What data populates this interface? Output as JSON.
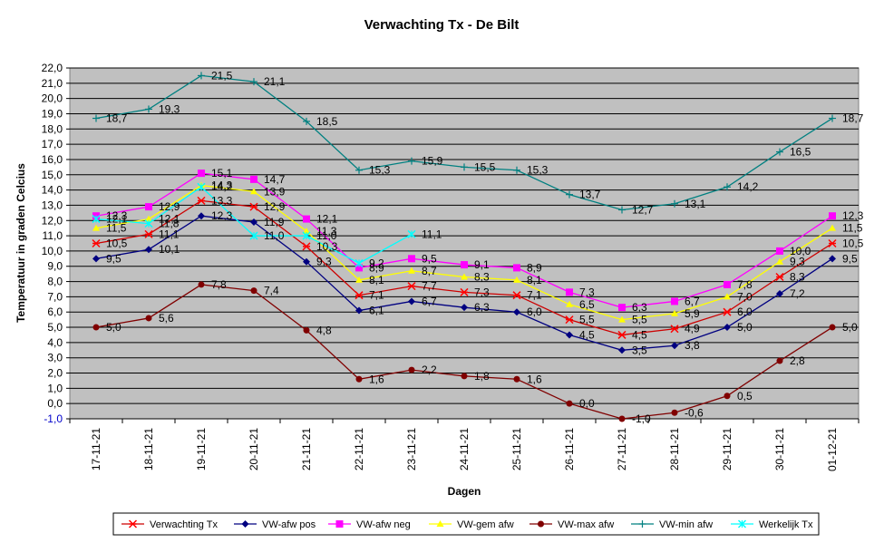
{
  "chart_data": {
    "type": "line",
    "title": "Verwachting Tx - De Bilt",
    "xlabel": "Dagen",
    "ylabel": "Temperatuur in graden Celcius",
    "ylim": [
      -1.0,
      22.0
    ],
    "ytick_step": 1.0,
    "yticks": [
      "-1,0",
      "0,0",
      "1,0",
      "2,0",
      "3,0",
      "4,0",
      "5,0",
      "6,0",
      "7,0",
      "8,0",
      "9,0",
      "10,0",
      "11,0",
      "12,0",
      "13,0",
      "14,0",
      "15,0",
      "16,0",
      "17,0",
      "18,0",
      "19,0",
      "20,0",
      "21,0",
      "22,0"
    ],
    "negative_tick_color": "#0000cc",
    "grid": true,
    "plot_background": "#c0c0c0",
    "legend_position": "bottom",
    "categories": [
      "17-11-21",
      "18-11-21",
      "19-11-21",
      "20-11-21",
      "21-11-21",
      "22-11-21",
      "23-11-21",
      "24-11-21",
      "25-11-21",
      "26-11-21",
      "27-11-21",
      "28-11-21",
      "29-11-21",
      "30-11-21",
      "01-12-21"
    ],
    "series": [
      {
        "name": "Verwachting Tx",
        "color": "#ff0000",
        "line_color": "#cc0000",
        "marker": "star",
        "values": [
          10.5,
          11.1,
          13.3,
          12.9,
          10.3,
          7.1,
          7.7,
          7.3,
          7.1,
          5.5,
          4.5,
          4.9,
          6.0,
          8.3,
          10.5
        ],
        "labels": [
          "10,5",
          "11,1",
          "13,3",
          "12,9",
          "10,3",
          "7,1",
          "7,7",
          "7,3",
          "7,1",
          "5,5",
          "4,5",
          "4,9",
          "6,0",
          "8,3",
          "10,5"
        ]
      },
      {
        "name": "VW-afw pos",
        "color": "#000080",
        "line_color": "#000080",
        "marker": "diamond",
        "values": [
          9.5,
          10.1,
          12.3,
          11.9,
          9.3,
          6.1,
          6.7,
          6.3,
          6.0,
          4.5,
          3.5,
          3.8,
          5.0,
          7.2,
          9.5
        ],
        "labels": [
          "9,5",
          "10,1",
          "12,3",
          "11,9",
          "9,3",
          "6,1",
          "6,7",
          "6,3",
          "6,0",
          "4,5",
          "3,5",
          "3,8",
          "5,0",
          "7,2",
          "9,5"
        ]
      },
      {
        "name": "VW-afw neg",
        "color": "#ff00ff",
        "line_color": "#ff00ff",
        "marker": "square",
        "values": [
          12.3,
          12.9,
          15.1,
          14.7,
          12.1,
          8.9,
          9.5,
          9.1,
          8.9,
          7.3,
          6.3,
          6.7,
          7.8,
          10.0,
          12.3
        ],
        "labels": [
          "12,3",
          "12,9",
          "15,1",
          "14,7",
          "12,1",
          "8,9",
          "9,5",
          "9,1",
          "8,9",
          "7,3",
          "6,3",
          "6,7",
          "7,8",
          "10,0",
          "12,3"
        ]
      },
      {
        "name": "VW-gem afw",
        "color": "#ffff00",
        "line_color": "#ffff00",
        "marker": "triangle",
        "values": [
          11.5,
          12.1,
          14.3,
          13.9,
          11.3,
          8.1,
          8.7,
          8.3,
          8.1,
          6.5,
          5.5,
          5.9,
          7.0,
          9.3,
          11.5
        ],
        "labels": [
          "11,5",
          "12,1",
          "14,3",
          "13,9",
          "11,3",
          "8,1",
          "8,7",
          "8,3",
          "8,1",
          "6,5",
          "5,5",
          "5,9",
          "7,0",
          "9,3",
          "11,5"
        ]
      },
      {
        "name": "VW-max afw",
        "color": "#800000",
        "line_color": "#800000",
        "marker": "circle",
        "values": [
          5.0,
          5.6,
          7.8,
          7.4,
          4.8,
          1.6,
          2.2,
          1.8,
          1.6,
          0.0,
          -1.0,
          -0.6,
          0.5,
          2.8,
          5.0
        ],
        "labels": [
          "5,0",
          "5,6",
          "7,8",
          "7,4",
          "4,8",
          "1,6",
          "2,2",
          "1,8",
          "1,6",
          "0,0",
          "-1,0",
          "-0,6",
          "0,5",
          "2,8",
          "5,0"
        ]
      },
      {
        "name": "VW-min afw",
        "color": "#008080",
        "line_color": "#008080",
        "marker": "plus",
        "values": [
          18.7,
          19.3,
          21.5,
          21.1,
          18.5,
          15.3,
          15.9,
          15.5,
          15.3,
          13.7,
          12.7,
          13.1,
          14.2,
          16.5,
          18.7
        ],
        "labels": [
          "18,7",
          "19,3",
          "21,5",
          "21,1",
          "18,5",
          "15,3",
          "15,9",
          "15,5",
          "15,3",
          "13,7",
          "12,7",
          "13,1",
          "14,2",
          "16,5",
          "18,7"
        ]
      },
      {
        "name": "Werkelijk Tx",
        "color": "#00ffff",
        "line_color": "#00ffff",
        "marker": "x",
        "values": [
          12.1,
          11.8,
          14.2,
          11.0,
          11.0,
          9.2,
          11.1,
          null,
          null,
          null,
          null,
          null,
          null,
          null,
          null
        ],
        "labels": [
          "12,1",
          "11,8",
          "14,2",
          "11,0",
          "11,0",
          "9,2",
          "11,1",
          "",
          "",
          "",
          "",
          "",
          "",
          "",
          ""
        ]
      }
    ]
  }
}
